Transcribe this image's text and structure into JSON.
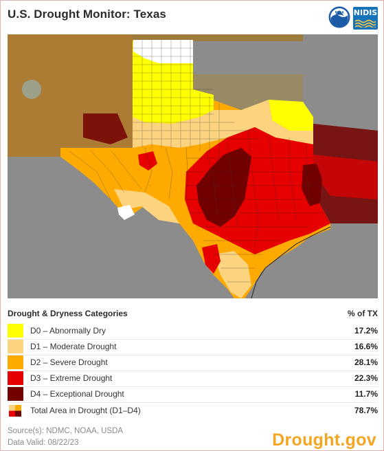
{
  "header": {
    "title": "U.S. Drought Monitor: Texas",
    "logos": {
      "noaa": {
        "icon": "noaa-logo-icon",
        "text": "NOAA"
      },
      "nidis": {
        "icon": "nidis-logo-icon",
        "text": "NIDIS"
      }
    }
  },
  "map": {
    "colors": {
      "background": "#8c8c8c",
      "none": "#ffffff",
      "D0": "#ffff00",
      "D1": "#fcd37f",
      "D2": "#ffaa00",
      "D3": "#e60000",
      "D4": "#730000",
      "outside_shade": "#b07a2a"
    }
  },
  "legend": {
    "heading": "Drought & Dryness Categories",
    "pct_heading": "% of TX",
    "rows": [
      {
        "label": "D0 – Abnormally Dry",
        "pct": "17.2%",
        "color": "#ffff00"
      },
      {
        "label": "D1 – Moderate Drought",
        "pct": "16.6%",
        "color": "#fcd37f"
      },
      {
        "label": "D2 – Severe Drought",
        "pct": "28.1%",
        "color": "#ffaa00"
      },
      {
        "label": "D3 – Extreme Drought",
        "pct": "22.3%",
        "color": "#e60000"
      },
      {
        "label": "D4 – Exceptional Drought",
        "pct": "11.7%",
        "color": "#730000"
      },
      {
        "label": "Total Area in Drought (D1–D4)",
        "pct": "78.7%",
        "icon": "drought-total-icon"
      }
    ]
  },
  "footer": {
    "source": "Source(s): NDMC, NOAA, USDA",
    "valid": "Data Valid: 08/22/23",
    "brand": "Drought.gov"
  }
}
